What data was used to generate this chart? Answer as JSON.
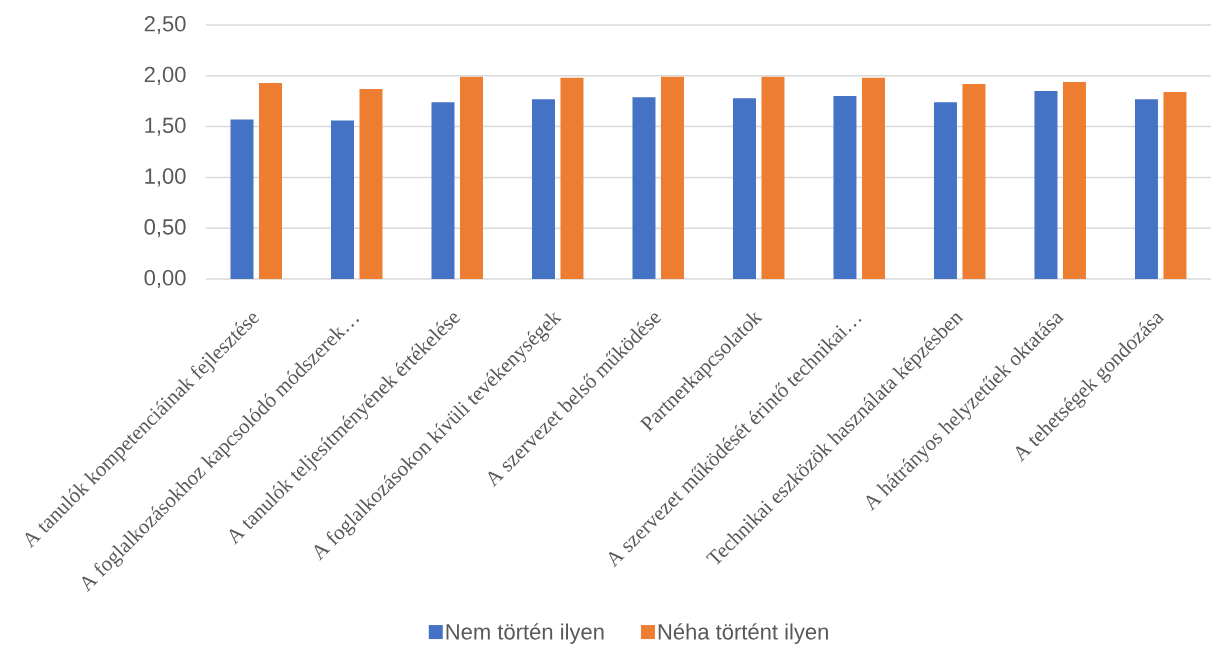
{
  "chart_data": {
    "type": "bar",
    "categories": [
      "A tanulók kompetenciáinak fejlesztése",
      "A foglalkozásokhoz kapcsolódó módszerek…",
      "A tanulók teljesítményének értékelése",
      "A foglalkozásokon kívüli tevékenységek",
      "A szervezet belső működése",
      "Partnerkapcsolatok",
      "A szervezet működését érintő technikai…",
      "Technikai eszközök használata képzésben",
      "A hátrányos helyzetűek oktatása",
      "A tehetségek gondozása"
    ],
    "series": [
      {
        "name": "Nem történ ilyen",
        "color": "#4472c4",
        "values": [
          1.57,
          1.56,
          1.74,
          1.77,
          1.79,
          1.78,
          1.8,
          1.74,
          1.85,
          1.77
        ]
      },
      {
        "name": "Néha történt ilyen",
        "color": "#ed7d31",
        "values": [
          1.93,
          1.87,
          1.99,
          1.98,
          1.99,
          1.99,
          1.98,
          1.92,
          1.94,
          1.84
        ]
      }
    ],
    "ylim": [
      0,
      2.5
    ],
    "yticks": [
      {
        "value": 0,
        "label": "0,00"
      },
      {
        "value": 0.5,
        "label": "0,50"
      },
      {
        "value": 1,
        "label": "1,00"
      },
      {
        "value": 1.5,
        "label": "1,50"
      },
      {
        "value": 2,
        "label": "2,00"
      },
      {
        "value": 2.5,
        "label": "2,50"
      }
    ],
    "grid": "y",
    "legend": "bottom"
  }
}
